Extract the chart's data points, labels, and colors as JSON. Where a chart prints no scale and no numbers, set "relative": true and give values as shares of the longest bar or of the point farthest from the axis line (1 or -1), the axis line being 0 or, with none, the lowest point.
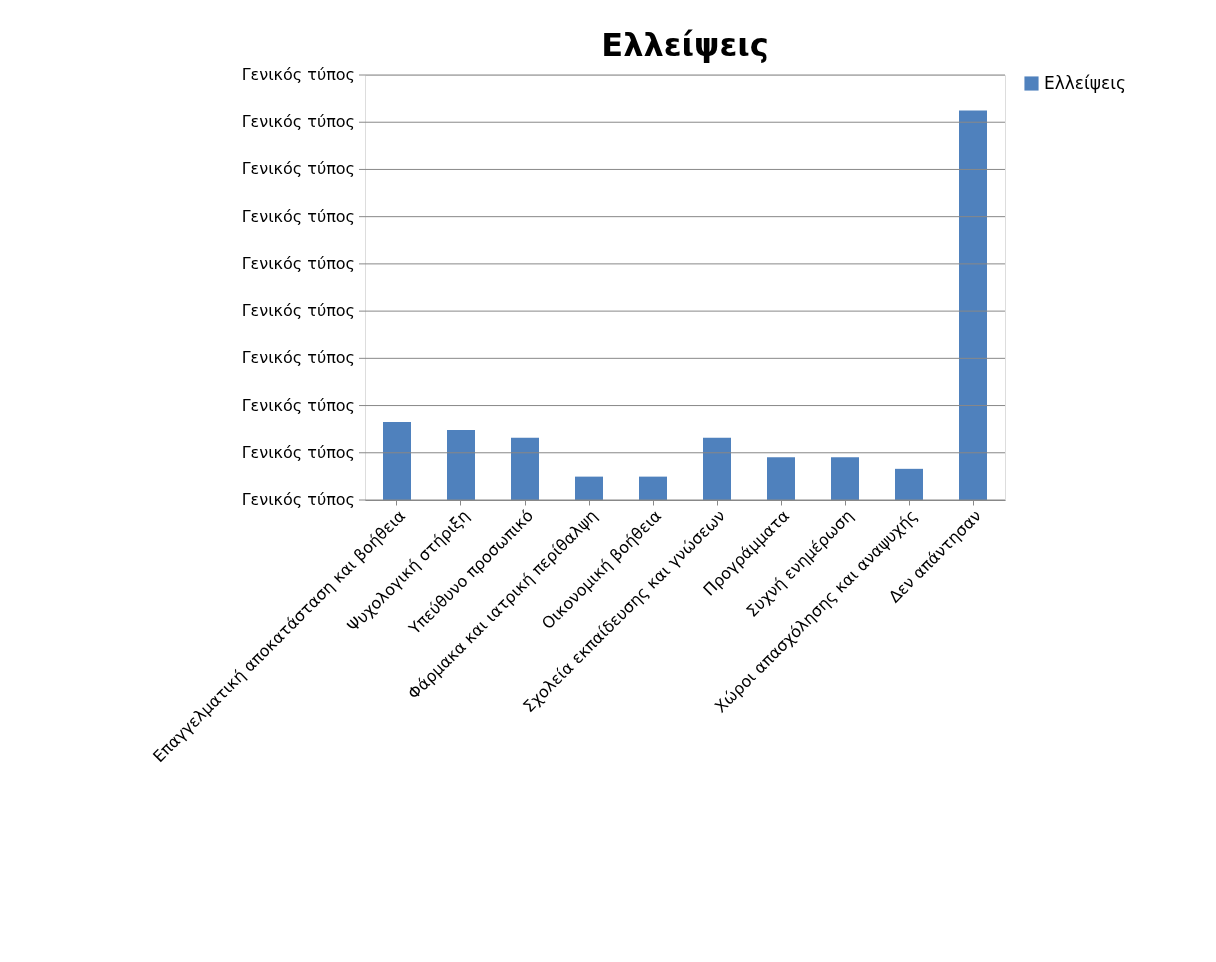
{
  "chart_data": {
    "type": "bar",
    "title": "Ελλείψεις",
    "categories": [
      "Επαγγελματική αποκατάσταση και βοήθεια",
      "Ψυχολογική στήριξη",
      "Υπεύθυνο προσωπικό",
      "Φάρμακα και ιατρική περίθαλψη",
      "Οικονομική βοήθεια",
      "Σχολεία εκπαίδευσης και γνώσεων",
      "Προγράμματα",
      "Συχνή ενημέρωση",
      "Χώροι απασχόλησης και αναψυχής",
      "Δεν απάντησαν"
    ],
    "series": [
      {
        "name": "Ελλείψεις",
        "color": "#4f81bd",
        "values": [
          0.2,
          0.18,
          0.16,
          0.06,
          0.06,
          0.16,
          0.11,
          0.11,
          0.08,
          1
        ]
      }
    ],
    "relative": true,
    "annotations": [
      "Γενικός τύπος",
      "Γενικός τύπος",
      "Γενικός τύπος",
      "Γενικός τύπος",
      "Γενικός τύπος",
      "Γενικός τύπος",
      "Γενικός τύπος",
      "Γενικός τύπος",
      "Γενικός τύπος",
      "Γενικός τύπος"
    ],
    "grid": "y",
    "legend": "right"
  }
}
